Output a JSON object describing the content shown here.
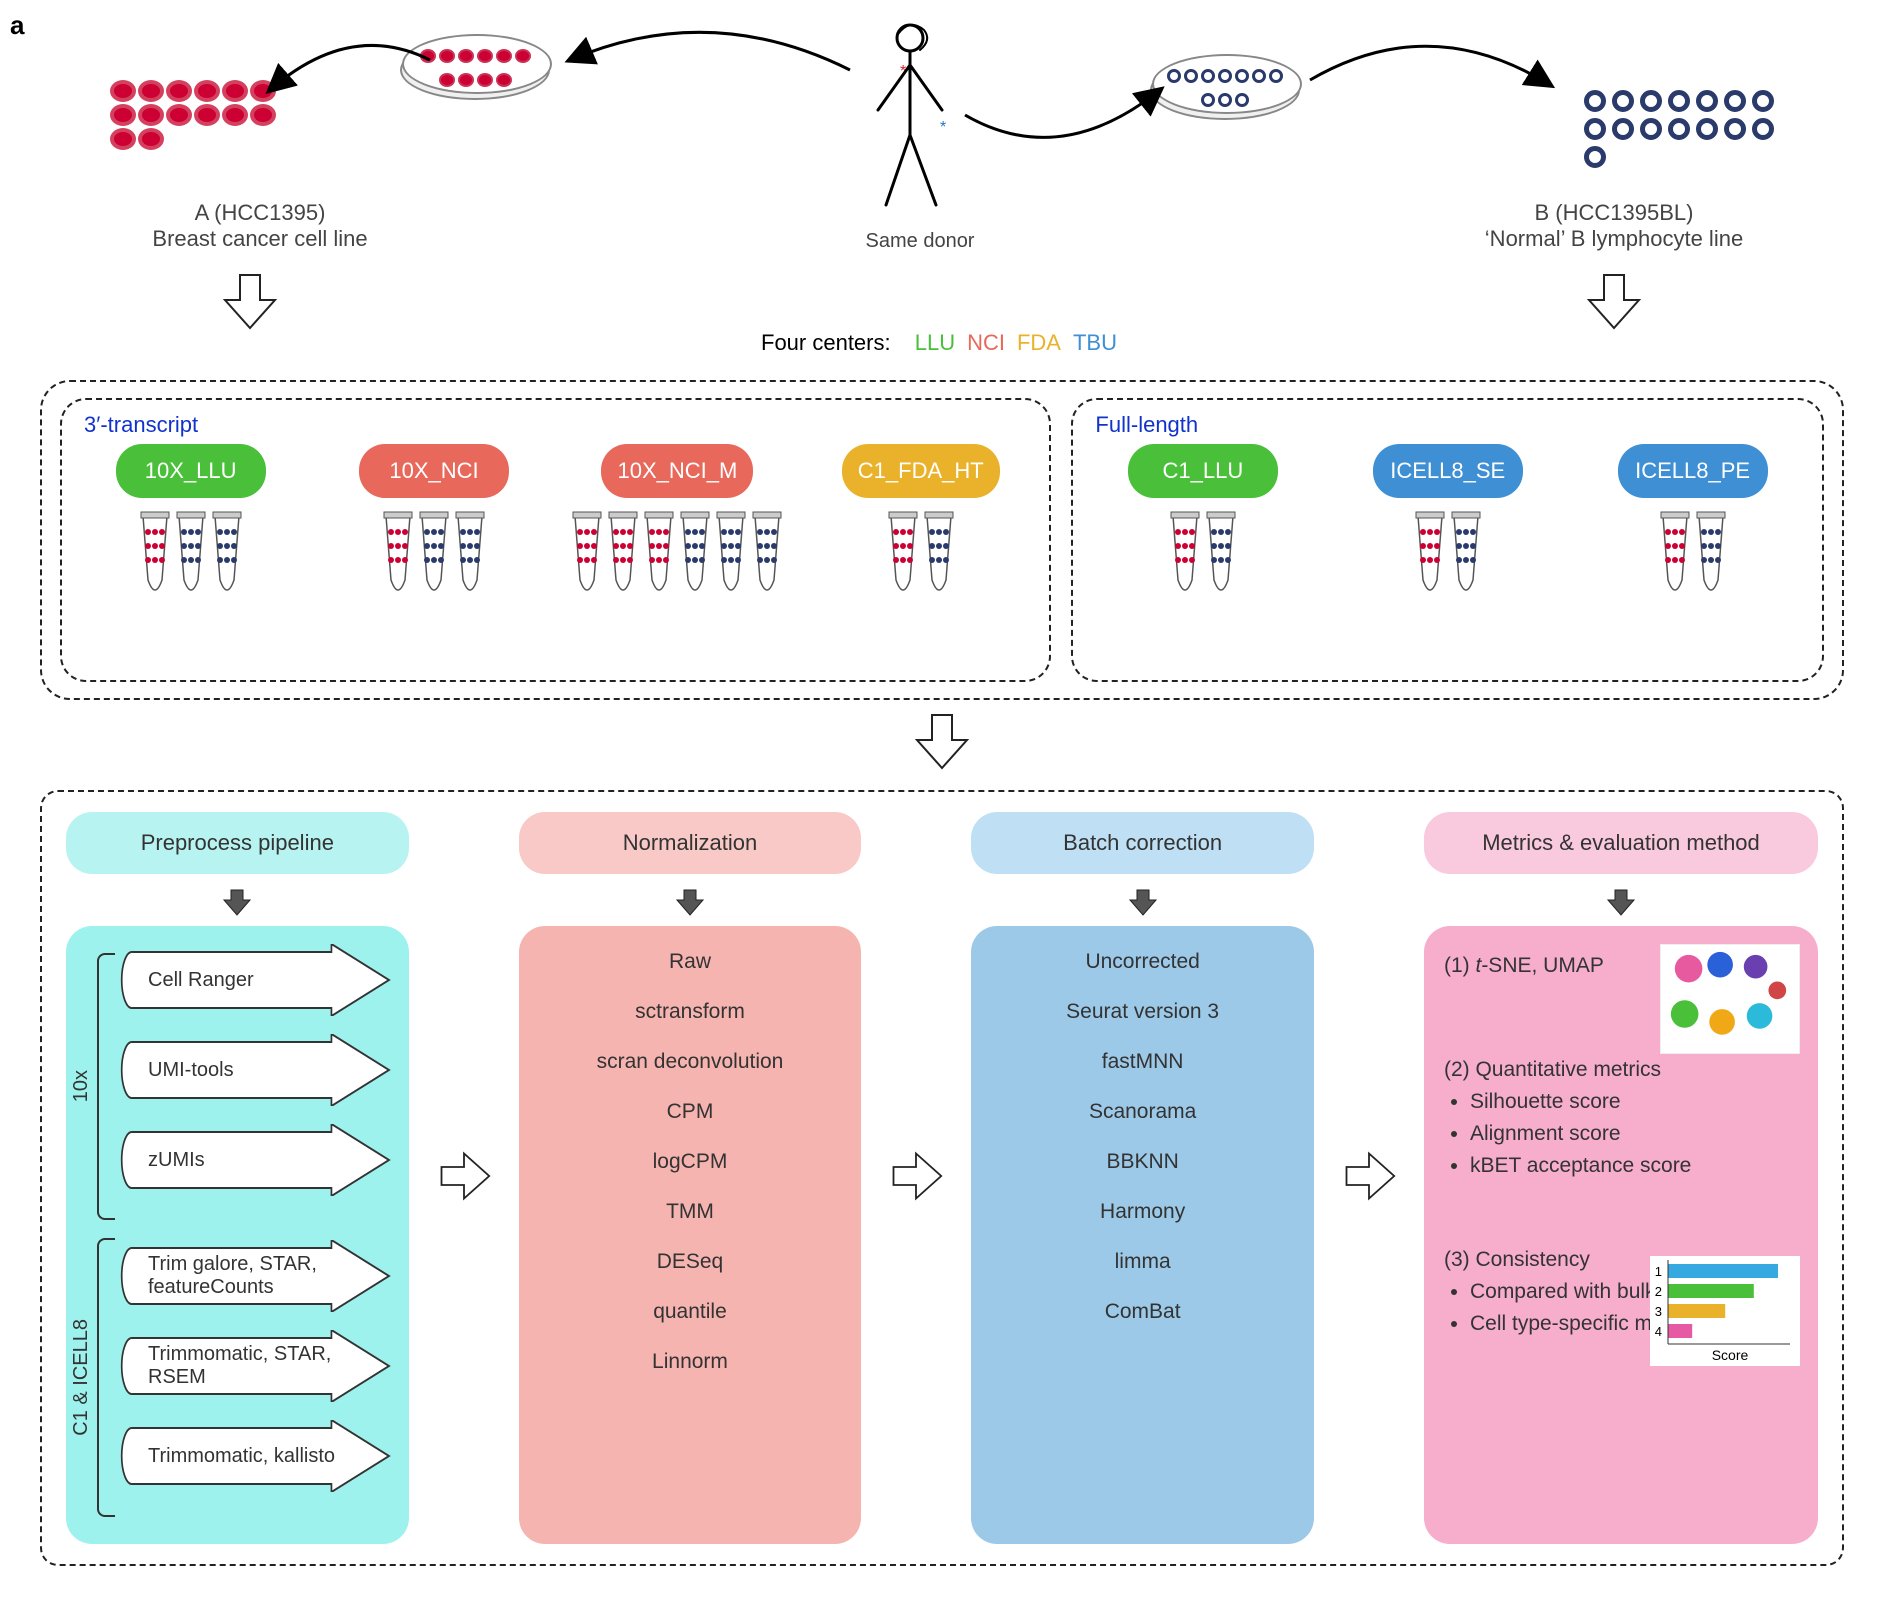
{
  "panel_label": "a",
  "top": {
    "left_title": "A (HCC1395)",
    "left_sub": "Breast cancer cell line",
    "center": "Same donor",
    "right_title": "B (HCC1395BL)",
    "right_sub": "‘Normal’ B lymphocyte line"
  },
  "centers": {
    "prefix": "Four centers:",
    "items": [
      {
        "label": "LLU",
        "color": "#4abf3a"
      },
      {
        "label": "NCI",
        "color": "#e8695b"
      },
      {
        "label": "FDA",
        "color": "#eab22a"
      },
      {
        "label": "TBU",
        "color": "#3e8fd3"
      }
    ]
  },
  "platforms": {
    "left_title": "3′-transcript",
    "right_title": "Full-length",
    "left": [
      {
        "name": "10X_LLU",
        "color": "#4abf3a",
        "tubes": [
          "r",
          "b",
          "b"
        ]
      },
      {
        "name": "10X_NCI",
        "color": "#e8695b",
        "tubes": [
          "r",
          "b",
          "b"
        ]
      },
      {
        "name": "10X_NCI_M",
        "color": "#e8695b",
        "tubes": [
          "r",
          "r",
          "r",
          "b",
          "b",
          "b"
        ]
      },
      {
        "name": "C1_FDA_HT",
        "color": "#eab22a",
        "tubes": [
          "r",
          "b"
        ]
      }
    ],
    "right": [
      {
        "name": "C1_LLU",
        "color": "#4abf3a",
        "tubes": [
          "r",
          "b"
        ]
      },
      {
        "name": "ICELL8_SE",
        "color": "#3e8fd3",
        "tubes": [
          "r",
          "b"
        ]
      },
      {
        "name": "ICELL8_PE",
        "color": "#3e8fd3",
        "tubes": [
          "r",
          "b"
        ]
      }
    ]
  },
  "analysis": {
    "headers": {
      "preprocess": "Preprocess pipeline",
      "normalization": "Normalization",
      "batch": "Batch correction",
      "metrics": "Metrics & evaluation method"
    },
    "colors": {
      "preprocess_header": "#b7f4f1",
      "preprocess_body": "#9ef2ee",
      "norm_header": "#f8c9c6",
      "norm_body": "#f6b4b0",
      "batch_header": "#bfe0f4",
      "batch_body": "#9cc9e8",
      "metrics_header": "#f9c9de",
      "metrics_body": "#f7aecd"
    },
    "preprocess": {
      "group1_label": "10x",
      "group1": [
        "Cell Ranger",
        "UMI-tools",
        "zUMIs"
      ],
      "group2_label": "C1 & ICELL8",
      "group2": [
        "Trim galore, STAR, featureCounts",
        "Trimmomatic, STAR, RSEM",
        "Trimmomatic, kallisto"
      ]
    },
    "normalization": [
      "Raw",
      "sctransform",
      "scran deconvolution",
      "CPM",
      "logCPM",
      "TMM",
      "DESeq",
      "quantile",
      "Linnorm"
    ],
    "batch": [
      "Uncorrected",
      "Seurat version 3",
      "fastMNN",
      "Scanorama",
      "BBKNN",
      "Harmony",
      "limma",
      "ComBat"
    ],
    "metrics": {
      "one_prefix": "(1) ",
      "one_tsne": "t",
      "one_rest": "-SNE, UMAP",
      "two_title": "(2) Quantitative metrics",
      "two_items": [
        "Silhouette score",
        "Alignment score",
        "kBET acceptance score"
      ],
      "three_title": "(3) Consistency",
      "three_items": [
        "Compared with bulk RNA-seq",
        "Cell type-specific markers"
      ],
      "mini_labels": [
        "1",
        "2",
        "3",
        "4"
      ],
      "mini_axis": "Score",
      "mini_values": [
        100,
        78,
        52,
        22
      ],
      "mini_colors": [
        "#37a9e1",
        "#4abf3a",
        "#eab22a",
        "#e65aa3"
      ]
    }
  }
}
